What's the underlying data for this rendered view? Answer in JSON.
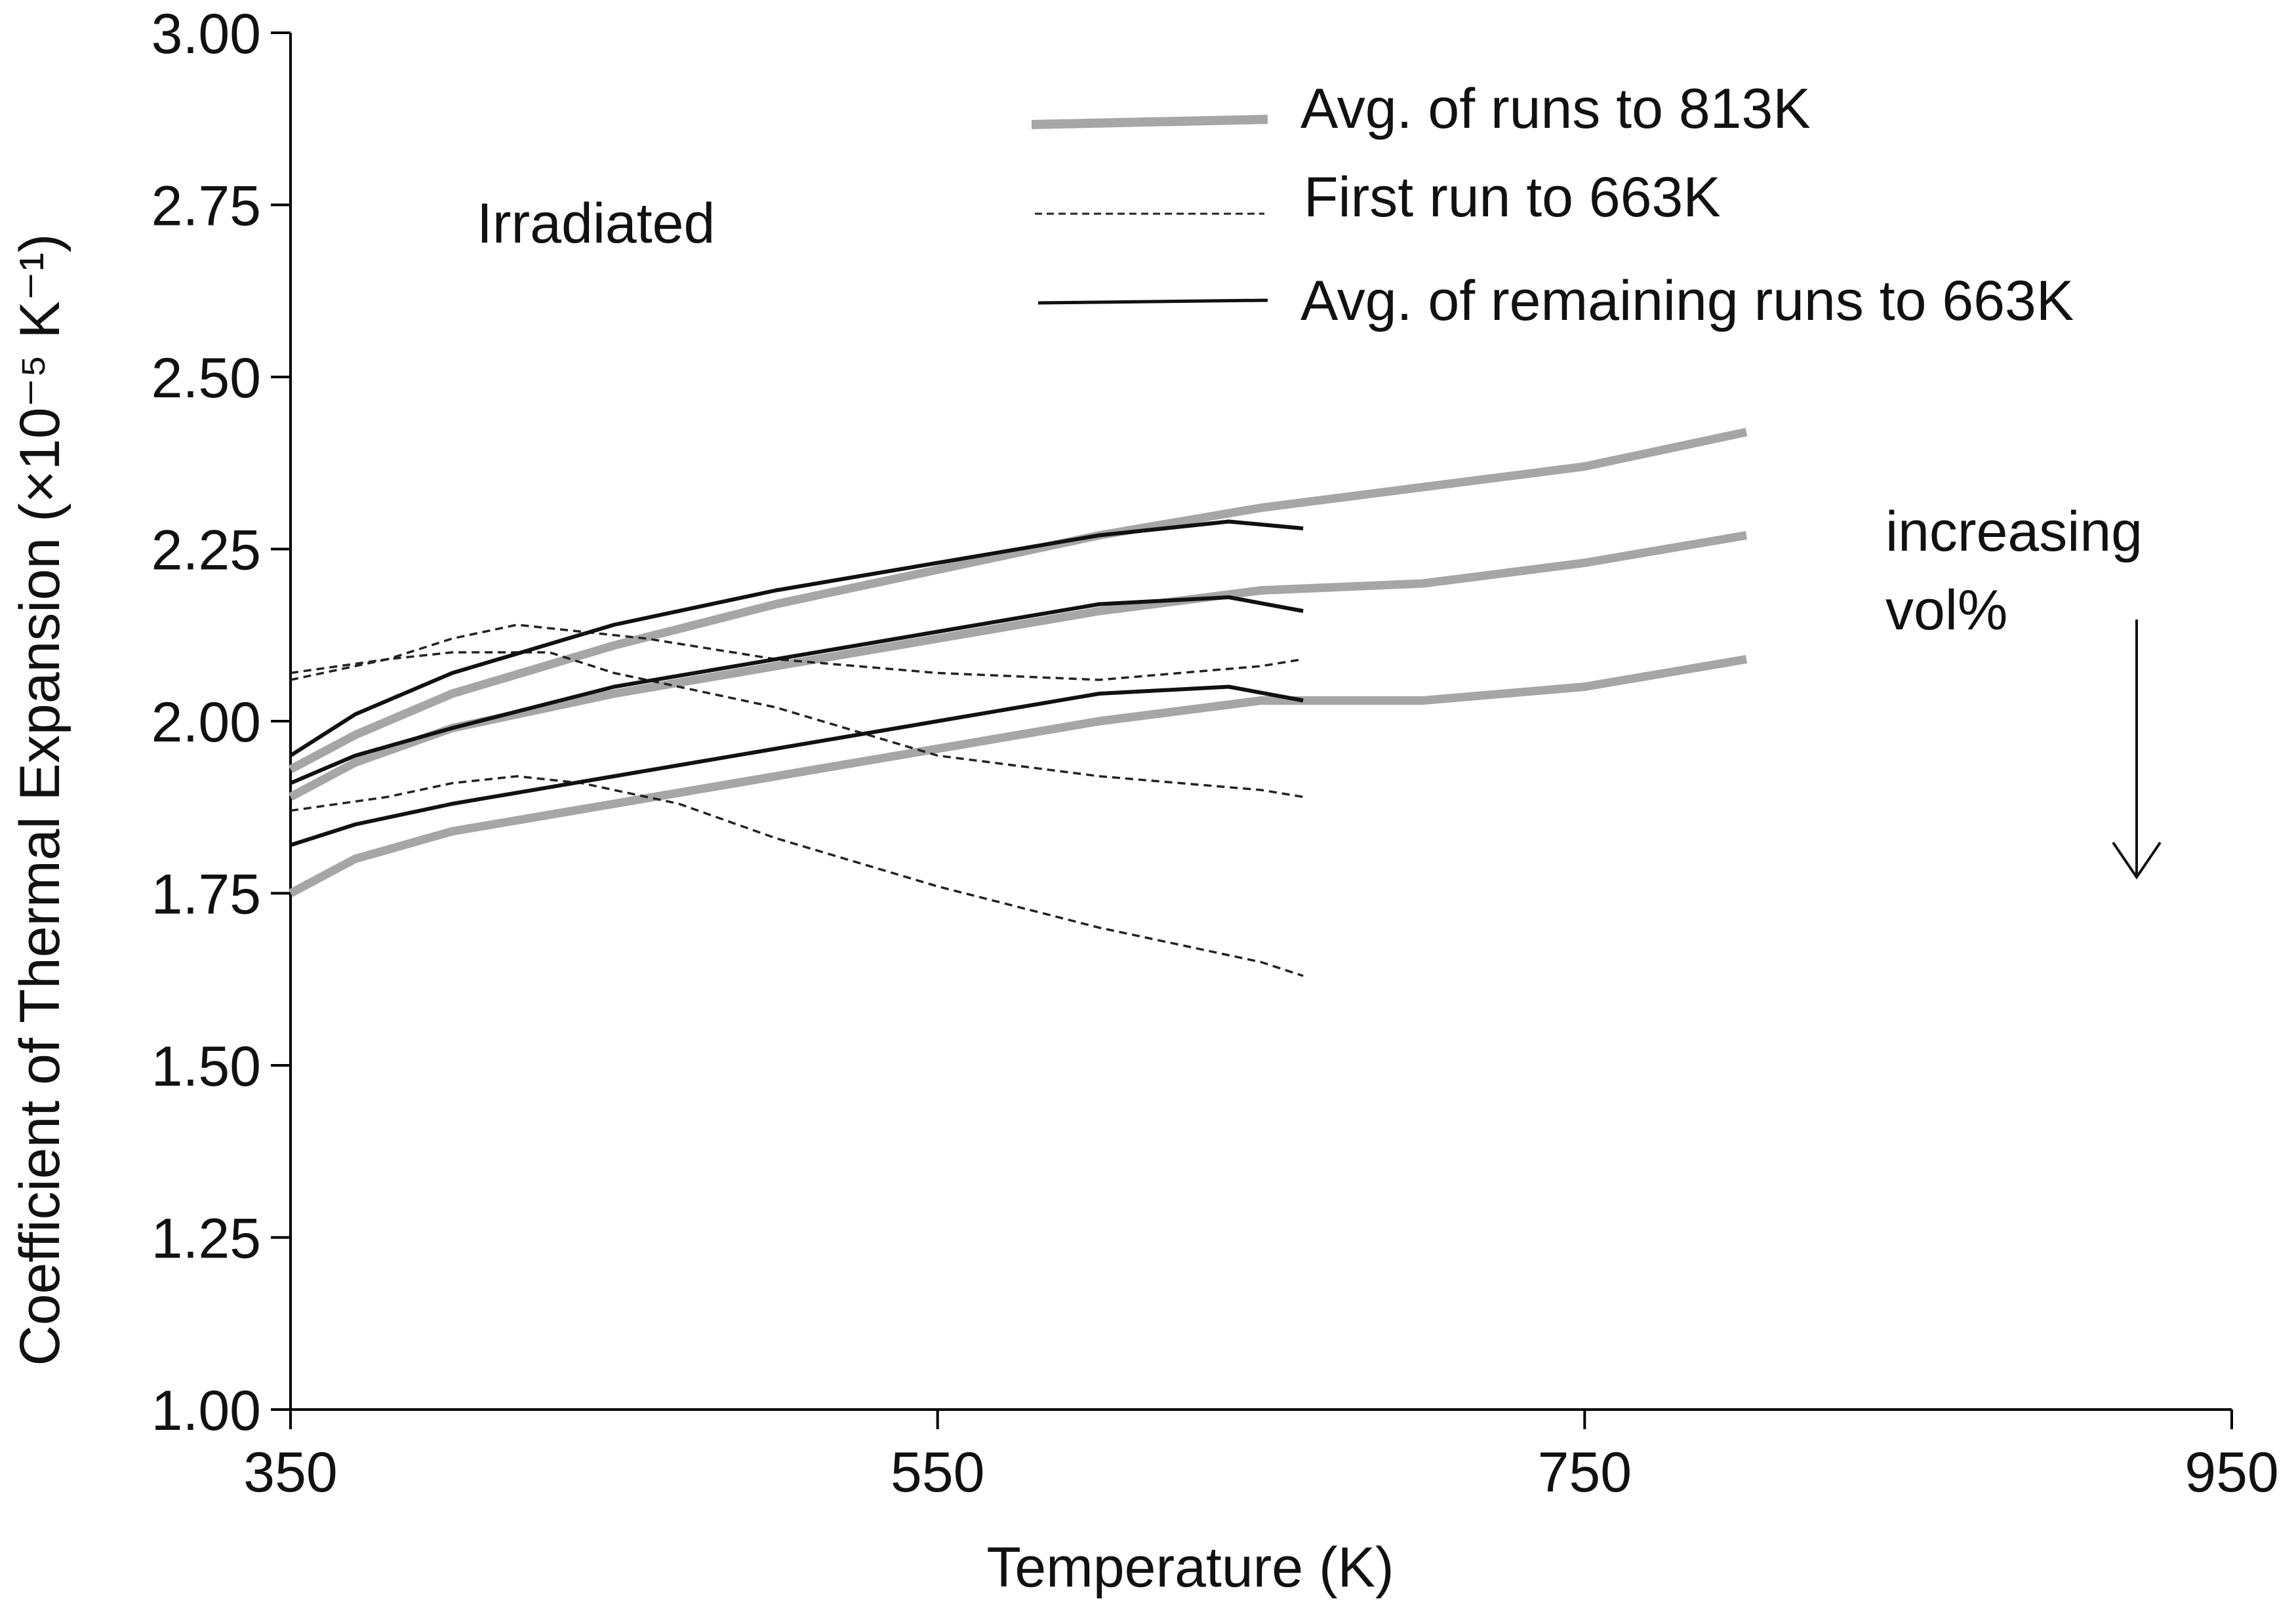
{
  "chart_data": {
    "type": "line",
    "title": "",
    "xlabel": "Temperature (K)",
    "ylabel": "Coefficient of Thermal Expansion (×10⁻⁵ K⁻¹)",
    "xlim": [
      350,
      950
    ],
    "ylim": [
      1.0,
      3.0
    ],
    "xticks": [
      "350",
      "550",
      "750",
      "950"
    ],
    "yticks": [
      "1.00",
      "1.25",
      "1.50",
      "1.75",
      "2.00",
      "2.25",
      "2.50",
      "2.75",
      "3.00"
    ],
    "grid": false,
    "annotations": {
      "condition": "Irradiated",
      "trend_line1": "increasing",
      "trend_line2": "vol%"
    },
    "legend": [
      {
        "key": "avg813",
        "label": "Avg. of runs to 813K",
        "color": "#a6a6a6",
        "style": "thick"
      },
      {
        "key": "first663",
        "label": "First run to 663K",
        "color": "#222222",
        "style": "dashed"
      },
      {
        "key": "avgRemaining663",
        "label": "Avg. of remaining runs to 663K",
        "color": "#111111",
        "style": "solid"
      }
    ],
    "series": [
      {
        "name": "Avg. of runs to 813K (1)",
        "group": "avg813",
        "x": [
          350,
          370,
          400,
          450,
          500,
          550,
          600,
          650,
          700,
          750,
          800
        ],
        "y": [
          1.93,
          1.98,
          2.04,
          2.11,
          2.17,
          2.22,
          2.27,
          2.31,
          2.34,
          2.37,
          2.42
        ]
      },
      {
        "name": "Avg. of runs to 813K (2)",
        "group": "avg813",
        "x": [
          350,
          370,
          400,
          450,
          500,
          550,
          600,
          650,
          700,
          750,
          800
        ],
        "y": [
          1.89,
          1.94,
          1.99,
          2.04,
          2.08,
          2.12,
          2.16,
          2.19,
          2.2,
          2.23,
          2.27
        ]
      },
      {
        "name": "Avg. of runs to 813K (3)",
        "group": "avg813",
        "x": [
          350,
          370,
          400,
          450,
          500,
          550,
          600,
          650,
          700,
          750,
          800
        ],
        "y": [
          1.75,
          1.8,
          1.84,
          1.88,
          1.92,
          1.96,
          2.0,
          2.03,
          2.03,
          2.05,
          2.09
        ]
      },
      {
        "name": "First run to 663K (1)",
        "group": "first663",
        "x": [
          350,
          380,
          400,
          420,
          440,
          460,
          500,
          550,
          600,
          650,
          663
        ],
        "y": [
          2.07,
          2.09,
          2.12,
          2.14,
          2.13,
          2.12,
          2.09,
          2.07,
          2.06,
          2.08,
          2.09
        ]
      },
      {
        "name": "First run to 663K (2)",
        "group": "first663",
        "x": [
          350,
          380,
          400,
          430,
          450,
          480,
          500,
          550,
          600,
          650,
          663
        ],
        "y": [
          2.06,
          2.09,
          2.1,
          2.1,
          2.07,
          2.04,
          2.02,
          1.95,
          1.92,
          1.9,
          1.89
        ]
      },
      {
        "name": "First run to 663K (3)",
        "group": "first663",
        "x": [
          350,
          380,
          400,
          420,
          440,
          470,
          500,
          550,
          600,
          650,
          663
        ],
        "y": [
          1.87,
          1.89,
          1.91,
          1.92,
          1.91,
          1.88,
          1.83,
          1.76,
          1.7,
          1.65,
          1.63
        ]
      },
      {
        "name": "Avg. of remaining runs to 663K (1)",
        "group": "avgRemaining663",
        "x": [
          350,
          370,
          400,
          450,
          500,
          550,
          600,
          640,
          663
        ],
        "y": [
          1.95,
          2.01,
          2.07,
          2.14,
          2.19,
          2.23,
          2.27,
          2.29,
          2.28
        ]
      },
      {
        "name": "Avg. of remaining runs to 663K (2)",
        "group": "avgRemaining663",
        "x": [
          350,
          370,
          400,
          450,
          500,
          550,
          600,
          640,
          663
        ],
        "y": [
          1.91,
          1.95,
          1.99,
          2.05,
          2.09,
          2.13,
          2.17,
          2.18,
          2.16
        ]
      },
      {
        "name": "Avg. of remaining runs to 663K (3)",
        "group": "avgRemaining663",
        "x": [
          350,
          370,
          400,
          450,
          500,
          550,
          600,
          640,
          663
        ],
        "y": [
          1.82,
          1.85,
          1.88,
          1.92,
          1.96,
          2.0,
          2.04,
          2.05,
          2.03
        ]
      }
    ]
  }
}
